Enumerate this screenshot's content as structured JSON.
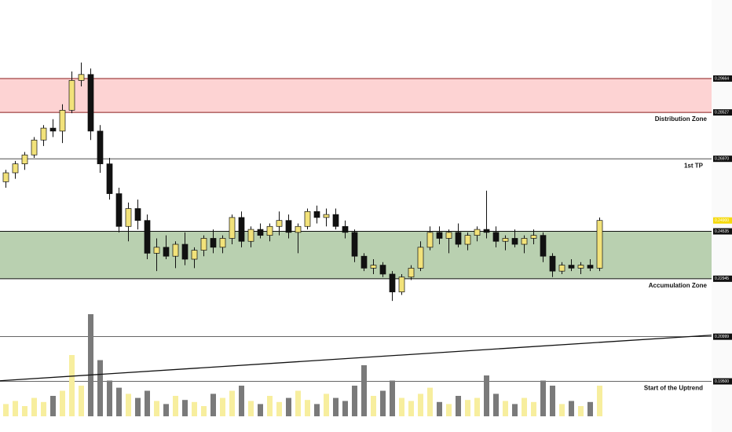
{
  "chart_data": {
    "type": "candlestick",
    "ylim": [
      0.178,
      0.323
    ],
    "yticks": [
      0.29664,
      0.28527,
      {
        "value": 0.2697,
        "label": "0.26970"
      },
      {
        "value": 0.249,
        "label": "0.24900"
      },
      0.24535,
      0.22945,
      0.20999,
      {
        "value": 0.195,
        "label": "0.19500"
      }
    ],
    "zones": [
      {
        "name": "Distribution Zone",
        "low": 0.28527,
        "high": 0.29664,
        "color": "#fdd3d3",
        "edge": "#8b1a1a"
      },
      {
        "name": "Accumulation Zone",
        "low": 0.22945,
        "high": 0.24535,
        "color": "#b9d0b0",
        "edge": "#111111"
      }
    ],
    "levels": [
      {
        "name": "1st TP",
        "value": 0.2697
      },
      {
        "value": 0.20999
      },
      {
        "name": "Start of the Uptrend",
        "value": 0.195
      }
    ],
    "trendline": [
      0.1952,
      0.2105
    ],
    "up_color": "#f2e27a",
    "down_color": "#111111",
    "last_price_color": "#f5d90a",
    "volume_up_color": "#f7ee9e",
    "volume_down_color": "#7a7a7a",
    "vlim": [
      0,
      100
    ],
    "ohlc": [
      [
        0.262,
        0.266,
        0.26,
        0.265
      ],
      [
        0.265,
        0.269,
        0.263,
        0.268
      ],
      [
        0.268,
        0.272,
        0.266,
        0.271
      ],
      [
        0.271,
        0.277,
        0.27,
        0.276
      ],
      [
        0.276,
        0.281,
        0.274,
        0.28
      ],
      [
        0.28,
        0.283,
        0.277,
        0.279
      ],
      [
        0.279,
        0.288,
        0.275,
        0.286
      ],
      [
        0.286,
        0.299,
        0.285,
        0.296
      ],
      [
        0.296,
        0.302,
        0.294,
        0.298
      ],
      [
        0.298,
        0.3,
        0.276,
        0.279
      ],
      [
        0.279,
        0.281,
        0.265,
        0.268
      ],
      [
        0.268,
        0.27,
        0.256,
        0.258
      ],
      [
        0.258,
        0.26,
        0.245,
        0.247
      ],
      [
        0.247,
        0.255,
        0.242,
        0.253
      ],
      [
        0.253,
        0.256,
        0.246,
        0.249
      ],
      [
        0.249,
        0.251,
        0.236,
        0.238
      ],
      [
        0.238,
        0.243,
        0.232,
        0.24
      ],
      [
        0.24,
        0.244,
        0.236,
        0.237
      ],
      [
        0.237,
        0.242,
        0.233,
        0.241
      ],
      [
        0.241,
        0.245,
        0.234,
        0.236
      ],
      [
        0.236,
        0.24,
        0.233,
        0.239
      ],
      [
        0.239,
        0.244,
        0.237,
        0.243
      ],
      [
        0.243,
        0.246,
        0.238,
        0.24
      ],
      [
        0.24,
        0.244,
        0.238,
        0.243
      ],
      [
        0.243,
        0.251,
        0.241,
        0.25
      ],
      [
        0.25,
        0.252,
        0.24,
        0.242
      ],
      [
        0.242,
        0.247,
        0.24,
        0.246
      ],
      [
        0.246,
        0.248,
        0.243,
        0.244
      ],
      [
        0.244,
        0.248,
        0.242,
        0.247
      ],
      [
        0.247,
        0.252,
        0.244,
        0.249
      ],
      [
        0.249,
        0.251,
        0.243,
        0.245
      ],
      [
        0.245,
        0.248,
        0.238,
        0.247
      ],
      [
        0.247,
        0.253,
        0.246,
        0.252
      ],
      [
        0.252,
        0.254,
        0.248,
        0.25
      ],
      [
        0.25,
        0.253,
        0.247,
        0.251
      ],
      [
        0.251,
        0.253,
        0.246,
        0.247
      ],
      [
        0.247,
        0.249,
        0.243,
        0.245
      ],
      [
        0.245,
        0.246,
        0.235,
        0.237
      ],
      [
        0.237,
        0.238,
        0.232,
        0.233
      ],
      [
        0.233,
        0.236,
        0.231,
        0.234
      ],
      [
        0.234,
        0.235,
        0.23,
        0.231
      ],
      [
        0.231,
        0.232,
        0.222,
        0.225
      ],
      [
        0.225,
        0.231,
        0.224,
        0.23
      ],
      [
        0.23,
        0.234,
        0.229,
        0.233
      ],
      [
        0.233,
        0.242,
        0.232,
        0.24
      ],
      [
        0.24,
        0.247,
        0.239,
        0.245
      ],
      [
        0.245,
        0.247,
        0.241,
        0.243
      ],
      [
        0.243,
        0.246,
        0.238,
        0.245
      ],
      [
        0.245,
        0.248,
        0.24,
        0.241
      ],
      [
        0.241,
        0.245,
        0.239,
        0.244
      ],
      [
        0.244,
        0.247,
        0.242,
        0.246
      ],
      [
        0.246,
        0.259,
        0.243,
        0.245
      ],
      [
        0.245,
        0.247,
        0.24,
        0.242
      ],
      [
        0.242,
        0.244,
        0.239,
        0.243
      ],
      [
        0.243,
        0.246,
        0.24,
        0.241
      ],
      [
        0.241,
        0.244,
        0.238,
        0.243
      ],
      [
        0.243,
        0.246,
        0.241,
        0.244
      ],
      [
        0.244,
        0.245,
        0.235,
        0.237
      ],
      [
        0.237,
        0.238,
        0.23,
        0.232
      ],
      [
        0.232,
        0.235,
        0.231,
        0.234
      ],
      [
        0.234,
        0.236,
        0.232,
        0.233
      ],
      [
        0.233,
        0.235,
        0.231,
        0.234
      ],
      [
        0.234,
        0.236,
        0.232,
        0.233
      ],
      [
        0.233,
        0.25,
        0.232,
        0.249
      ]
    ],
    "volume": [
      12,
      15,
      10,
      18,
      14,
      20,
      25,
      60,
      30,
      100,
      55,
      35,
      28,
      22,
      18,
      25,
      15,
      12,
      20,
      16,
      14,
      10,
      22,
      18,
      25,
      30,
      15,
      12,
      20,
      14,
      18,
      25,
      16,
      12,
      22,
      18,
      15,
      30,
      50,
      20,
      25,
      35,
      18,
      15,
      22,
      28,
      14,
      12,
      20,
      16,
      18,
      40,
      22,
      15,
      12,
      18,
      14,
      35,
      30,
      12,
      15,
      10,
      14,
      30
    ]
  }
}
